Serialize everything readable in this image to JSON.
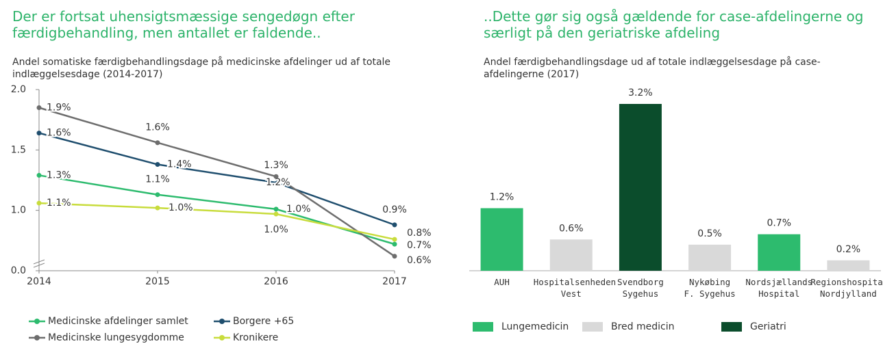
{
  "chart_data": [
    {
      "type": "line",
      "title": "Der er fortsat uhensigtsmæssige sengedøgn efter færdigbehandling, men antallet er faldende..",
      "subtitle": "Andel somatiske færdigbehandlingsdage på medicinske afdelinger ud af totale indlæggelsesdage (2014-2017)",
      "x": [
        2014,
        2015,
        2016,
        2017
      ],
      "xlim": [
        2014,
        2017
      ],
      "xticks": [
        2014,
        2015,
        2016,
        2017
      ],
      "ylim": [
        0,
        2.0
      ],
      "yticks": [
        {
          "value": 0,
          "label": "0.0"
        },
        {
          "value": 1.0,
          "label": "1.0"
        },
        1.5,
        {
          "value": 2.0,
          "label": "2.0"
        }
      ],
      "axis_break": true,
      "series": [
        {
          "name": "Medicinske afdelinger samlet",
          "color": "#2dbb6e",
          "values": [
            1.29,
            1.13,
            1.01,
            0.72
          ],
          "value_labels": [
            "1.3%",
            "1.1%",
            "1.0%",
            "0.7%"
          ]
        },
        {
          "name": "Borgere +65",
          "color": "#1f4e6e",
          "values": [
            1.64,
            1.38,
            1.23,
            0.88
          ],
          "value_labels": [
            "1.6%",
            "1.4%",
            "1.2%",
            "0.9%"
          ]
        },
        {
          "name": "Medicinske lungesygdomme",
          "color": "#6d6d6d",
          "values": [
            1.85,
            1.56,
            1.28,
            0.62
          ],
          "value_labels": [
            "1.9%",
            "1.6%",
            "1.3%",
            "0.6%"
          ]
        },
        {
          "name": "Kronikere",
          "color": "#c8dc3c",
          "values": [
            1.06,
            1.02,
            0.97,
            0.76
          ],
          "value_labels": [
            "1.1%",
            "1.0%",
            "1.0%",
            "0.8%"
          ]
        }
      ]
    },
    {
      "type": "bar",
      "title": "..Dette gør sig også gældende for case-afdelingerne og særligt på den geriatriske afdeling",
      "subtitle": "Andel færdigbehandlingsdage ud af totale indlæggelsesdage på case-afdelingerne (2017)",
      "categories": [
        "AUH",
        "Hospitalsenheden\nVest",
        "Svendborg\nSygehus",
        "Nykøbing\nF. Sygehus",
        "Nordsjællands\nHospital",
        "Regionshospital\nNordjylland"
      ],
      "values": [
        1.2,
        0.6,
        3.2,
        0.5,
        0.7,
        0.2
      ],
      "value_labels": [
        "1.2%",
        "0.6%",
        "3.2%",
        "0.5%",
        "0.7%",
        "0.2%"
      ],
      "colors": [
        "#2dbb6e",
        "#d9d9d9",
        "#0b4d2c",
        "#d9d9d9",
        "#2dbb6e",
        "#d9d9d9"
      ],
      "legend": [
        {
          "name": "Lungemedicin",
          "color": "#2dbb6e"
        },
        {
          "name": "Bred medicin",
          "color": "#d9d9d9"
        },
        {
          "name": "Geriatri",
          "color": "#0b4d2c"
        }
      ]
    }
  ]
}
